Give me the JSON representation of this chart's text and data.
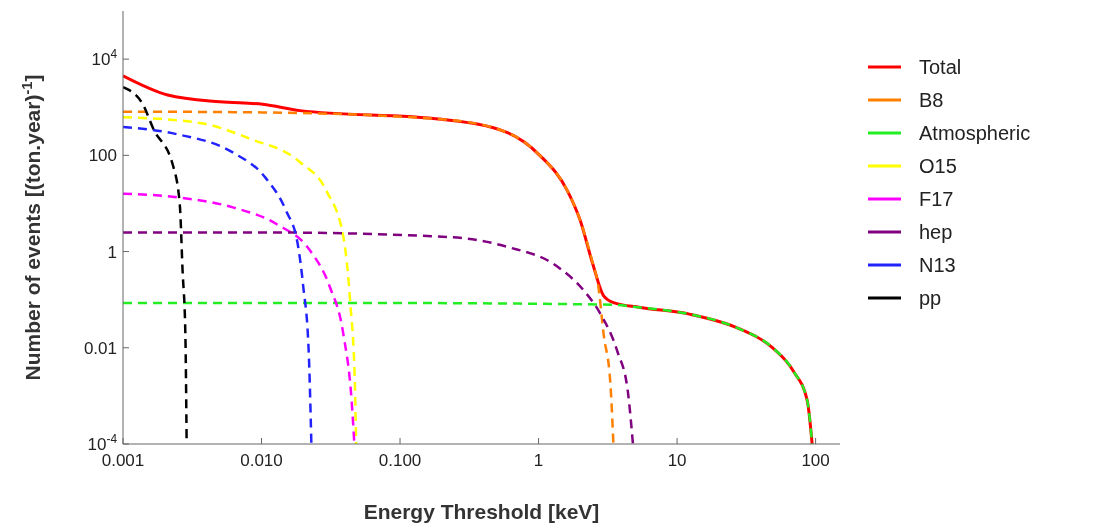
{
  "chart_data": {
    "type": "line",
    "xlabel": "Energy Threshold [keV]",
    "ylabel": "Number of events [(ton.year)$^{-1}$]",
    "log": "xy",
    "grid": false,
    "legend": "right",
    "marker": "none",
    "xlim": [
      0.001,
      150
    ],
    "ylim": [
      0.0001,
      100000
    ],
    "xticks": [
      0.001,
      {
        "value": 0.01,
        "label": "0.010"
      },
      {
        "value": 0.1,
        "label": "0.100"
      },
      1,
      10,
      100
    ],
    "yticks": [
      {
        "value": 0.0001,
        "label": "10$^{-4}$"
      },
      0.01,
      1,
      100,
      {
        "value": 10000,
        "label": "10$^{4}$"
      }
    ],
    "series": [
      {
        "name": "Total",
        "color": "#ff0000",
        "line_style": "solid",
        "x": [
          0.001,
          0.0021,
          0.005,
          0.0102,
          0.019,
          0.2,
          0.59,
          1.02,
          1.62,
          2.0,
          2.45,
          2.95,
          3.47,
          5.4,
          12.3,
          28,
          49,
          69,
          87,
          94.4
        ],
        "values": [
          4500,
          1800,
          1300,
          1150,
          850,
          560,
          300,
          100,
          18,
          4.4,
          0.58,
          0.12,
          0.087,
          0.069,
          0.05,
          0.025,
          0.01,
          0.0033,
          0.0008,
          0.0001
        ]
      },
      {
        "name": "B8",
        "color": "#ff8000",
        "line_style": "dashed",
        "x": [
          0.001,
          0.01,
          0.2,
          0.59,
          1.02,
          1.62,
          2.0,
          2.45,
          2.7,
          2.95,
          3.3,
          3.47
        ],
        "values": [
          810,
          780,
          560,
          300,
          100,
          18,
          4.4,
          0.6,
          0.19,
          0.019,
          0.0018,
          0.0001
        ]
      },
      {
        "name": "Atmospheric",
        "color": "#22ee22",
        "line_style": "dashed",
        "x": [
          0.001,
          0.1,
          1,
          3.47,
          5.4,
          12.3,
          28,
          49,
          69,
          87,
          94.4
        ],
        "values": [
          0.085,
          0.085,
          0.082,
          0.078,
          0.069,
          0.05,
          0.025,
          0.01,
          0.0033,
          0.0008,
          0.0001
        ]
      },
      {
        "name": "O15",
        "color": "#ffff00",
        "line_style": "dashed",
        "x": [
          0.001,
          0.0036,
          0.0083,
          0.019,
          0.0295,
          0.039,
          0.0437,
          0.0472,
          0.0482
        ],
        "values": [
          620,
          470,
          220,
          72,
          18,
          2.0,
          0.087,
          0.0018,
          0.0001
        ]
      },
      {
        "name": "F17",
        "color": "#ff00ff",
        "line_style": "dashed",
        "x": [
          0.001,
          0.0027,
          0.0062,
          0.0129,
          0.0224,
          0.031,
          0.039,
          0.0447,
          0.0468
        ],
        "values": [
          16,
          13,
          8.3,
          3.7,
          1.05,
          0.19,
          0.019,
          0.0008,
          0.0001
        ]
      },
      {
        "name": "hep",
        "color": "#800080",
        "line_style": "dashed",
        "x": [
          0.001,
          0.01,
          0.23,
          0.59,
          1.35,
          2.1,
          2.75,
          3.7,
          4.4,
          4.8
        ],
        "values": [
          2.5,
          2.5,
          2.0,
          1.26,
          0.5,
          0.16,
          0.055,
          0.0085,
          0.0013,
          0.0001
        ]
      },
      {
        "name": "N13",
        "color": "#2222ff",
        "line_style": "dashed",
        "x": [
          0.001,
          0.00245,
          0.0062,
          0.0107,
          0.0151,
          0.0182,
          0.02,
          0.0219,
          0.0229
        ],
        "values": [
          390,
          275,
          115,
          34,
          6.9,
          1.5,
          0.19,
          0.0085,
          0.0001
        ]
      },
      {
        "name": "pp",
        "color": "#000000",
        "line_style": "dashed",
        "x": [
          0.001,
          0.00138,
          0.00166,
          0.00229,
          0.00257,
          0.00269,
          0.00282,
          0.00288
        ],
        "values": [
          2600,
          1200,
          350,
          63,
          9.5,
          0.42,
          0.019,
          0.0001
        ]
      }
    ]
  }
}
